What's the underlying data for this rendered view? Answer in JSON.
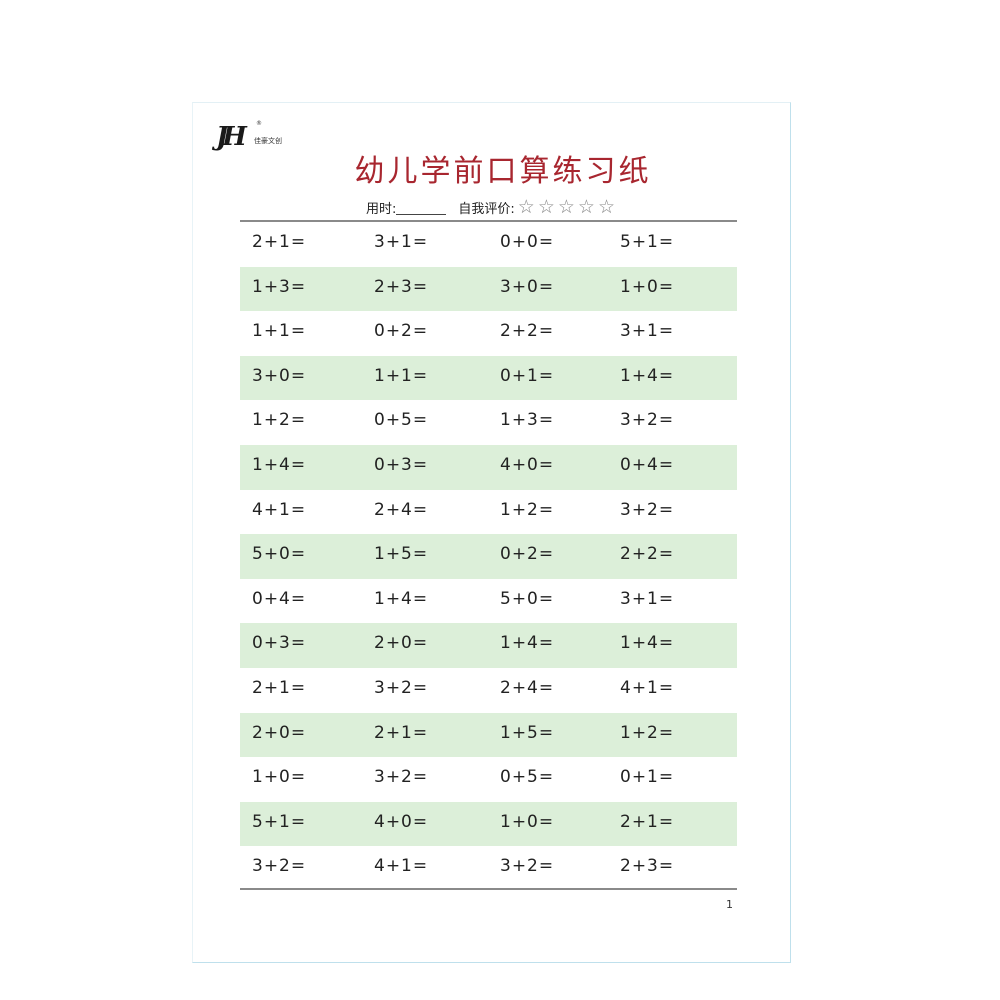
{
  "logo": {
    "mark": "JH",
    "registered": "®",
    "text": "佳豪文创"
  },
  "title": "幼儿学前口算练习纸",
  "meta": {
    "time_label": "用时:",
    "rating_label": "自我评价:",
    "stars": 5,
    "star_icon": "star-outline-icon"
  },
  "colors": {
    "title": "#a8262f",
    "row_shade": "#dcefd9",
    "rule": "#8a8a8a"
  },
  "problems": [
    [
      "2+1=",
      "3+1=",
      "0+0=",
      "5+1="
    ],
    [
      "1+3=",
      "2+3=",
      "3+0=",
      "1+0="
    ],
    [
      "1+1=",
      "0+2=",
      "2+2=",
      "3+1="
    ],
    [
      "3+0=",
      "1+1=",
      "0+1=",
      "1+4="
    ],
    [
      "1+2=",
      "0+5=",
      "1+3=",
      "3+2="
    ],
    [
      "1+4=",
      "0+3=",
      "4+0=",
      "0+4="
    ],
    [
      "4+1=",
      "2+4=",
      "1+2=",
      "3+2="
    ],
    [
      "5+0=",
      "1+5=",
      "0+2=",
      "2+2="
    ],
    [
      "0+4=",
      "1+4=",
      "5+0=",
      "3+1="
    ],
    [
      "0+3=",
      "2+0=",
      "1+4=",
      "1+4="
    ],
    [
      "2+1=",
      "3+2=",
      "2+4=",
      "4+1="
    ],
    [
      "2+0=",
      "2+1=",
      "1+5=",
      "1+2="
    ],
    [
      "1+0=",
      "3+2=",
      "0+5=",
      "0+1="
    ],
    [
      "5+1=",
      "4+0=",
      "1+0=",
      "2+1="
    ],
    [
      "3+2=",
      "4+1=",
      "3+2=",
      "2+3="
    ]
  ],
  "page_number": "1"
}
